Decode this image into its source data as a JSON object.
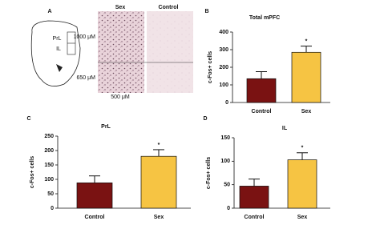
{
  "panel_a": {
    "letter": "A",
    "labels": {
      "prl": "PrL",
      "il": "IL",
      "sex": "Sex",
      "control": "Control",
      "scale_top": "1000 μM",
      "scale_bottom": "650 μM",
      "scale_width": "500 μM"
    }
  },
  "chart_data": [
    {
      "type": "bar",
      "panel": "B",
      "title": "Total mPFC",
      "ylabel": "c-Fos+ cells",
      "categories": [
        "Control",
        "Sex"
      ],
      "values": [
        135,
        285
      ],
      "errors": [
        40,
        35
      ],
      "annotations": [
        null,
        "*"
      ],
      "colors": [
        "#7a1212",
        "#f6c443"
      ],
      "ylim": [
        0,
        400
      ],
      "yticks": [
        0,
        100,
        200,
        300,
        400
      ]
    },
    {
      "type": "bar",
      "panel": "C",
      "title": "PrL",
      "ylabel": "c-Fos+ cells",
      "categories": [
        "Control",
        "Sex"
      ],
      "values": [
        88,
        180
      ],
      "errors": [
        24,
        23
      ],
      "annotations": [
        null,
        "*"
      ],
      "colors": [
        "#7a1212",
        "#f6c443"
      ],
      "ylim": [
        0,
        250
      ],
      "yticks": [
        0,
        50,
        100,
        150,
        200,
        250
      ]
    },
    {
      "type": "bar",
      "panel": "D",
      "title": "IL",
      "ylabel": "c-Fos+ cells",
      "categories": [
        "Control",
        "Sex"
      ],
      "values": [
        47,
        103
      ],
      "errors": [
        15,
        15
      ],
      "annotations": [
        null,
        "*"
      ],
      "colors": [
        "#7a1212",
        "#f6c443"
      ],
      "ylim": [
        0,
        150
      ],
      "yticks": [
        0,
        50,
        100,
        150
      ]
    }
  ]
}
